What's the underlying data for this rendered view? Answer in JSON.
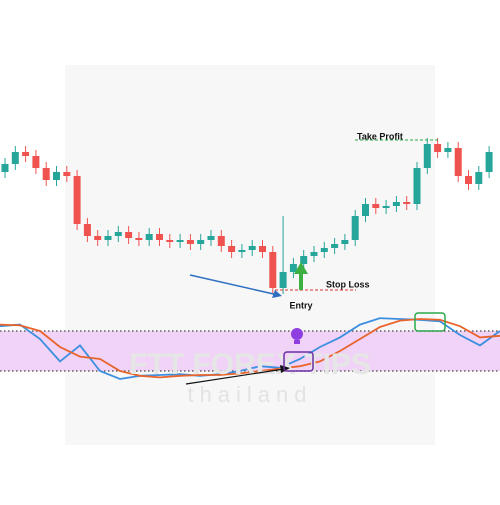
{
  "chart_data": [
    {
      "type": "candlestick",
      "open": [
        64,
        68,
        74,
        72,
        66,
        60,
        64,
        62,
        38,
        32,
        30,
        32,
        34,
        31,
        30,
        33,
        30,
        29,
        30,
        28,
        30,
        32,
        27,
        24,
        25,
        27,
        24,
        6,
        14,
        18,
        22,
        24,
        26,
        28,
        30,
        42,
        48,
        46,
        47,
        49,
        48,
        66,
        78,
        74,
        76,
        62,
        58,
        64
      ],
      "high": [
        71,
        77,
        77,
        75,
        69,
        67,
        67,
        65,
        41,
        35,
        35,
        37,
        37,
        34,
        36,
        36,
        33,
        33,
        33,
        33,
        35,
        35,
        30,
        28,
        30,
        30,
        27,
        42,
        21,
        25,
        27,
        29,
        31,
        33,
        45,
        51,
        51,
        50,
        52,
        52,
        69,
        81,
        81,
        79,
        79,
        65,
        67,
        77
      ],
      "low": [
        61,
        65,
        69,
        63,
        57,
        57,
        59,
        35,
        29,
        27,
        27,
        29,
        28,
        27,
        27,
        27,
        26,
        26,
        25,
        25,
        27,
        24,
        21,
        21,
        22,
        21,
        3,
        3,
        11,
        15,
        19,
        21,
        23,
        25,
        27,
        39,
        43,
        43,
        44,
        45,
        45,
        63,
        71,
        71,
        59,
        55,
        55,
        61
      ],
      "close": [
        68,
        74,
        72,
        66,
        60,
        64,
        62,
        38,
        32,
        30,
        32,
        34,
        31,
        30,
        33,
        30,
        29,
        30,
        28,
        30,
        32,
        27,
        24,
        25,
        27,
        24,
        6,
        14,
        18,
        22,
        24,
        26,
        28,
        30,
        42,
        48,
        46,
        47,
        49,
        48,
        66,
        78,
        74,
        76,
        62,
        58,
        64,
        74
      ],
      "up_color": "#26a69a",
      "down_color": "#ef5350",
      "ylim": [
        0,
        100
      ],
      "annotations": {
        "take_profit": "Take Profit",
        "stop_loss": "Stop Loss",
        "entry": "Entry"
      }
    },
    {
      "type": "line",
      "series": [
        {
          "color": "#3d8fe0",
          "values": [
            86,
            88,
            70,
            42,
            62,
            30,
            20,
            24,
            25,
            26,
            24,
            26,
            30,
            36,
            34,
            45,
            60,
            72,
            88,
            96,
            95,
            94,
            92,
            75,
            62,
            80
          ]
        },
        {
          "color": "#e8642c",
          "values": [
            88,
            87,
            80,
            60,
            48,
            45,
            30,
            24,
            22,
            24,
            25,
            25,
            27,
            30,
            33,
            36,
            42,
            55,
            70,
            85,
            93,
            95,
            94,
            86,
            72,
            74
          ]
        }
      ],
      "ylim": [
        0,
        100
      ],
      "levels": [
        30,
        80
      ],
      "band_color": "#f0d3f7"
    }
  ],
  "watermark": {
    "brand": "FTT FOREX TIPS",
    "sub": "thailand"
  }
}
